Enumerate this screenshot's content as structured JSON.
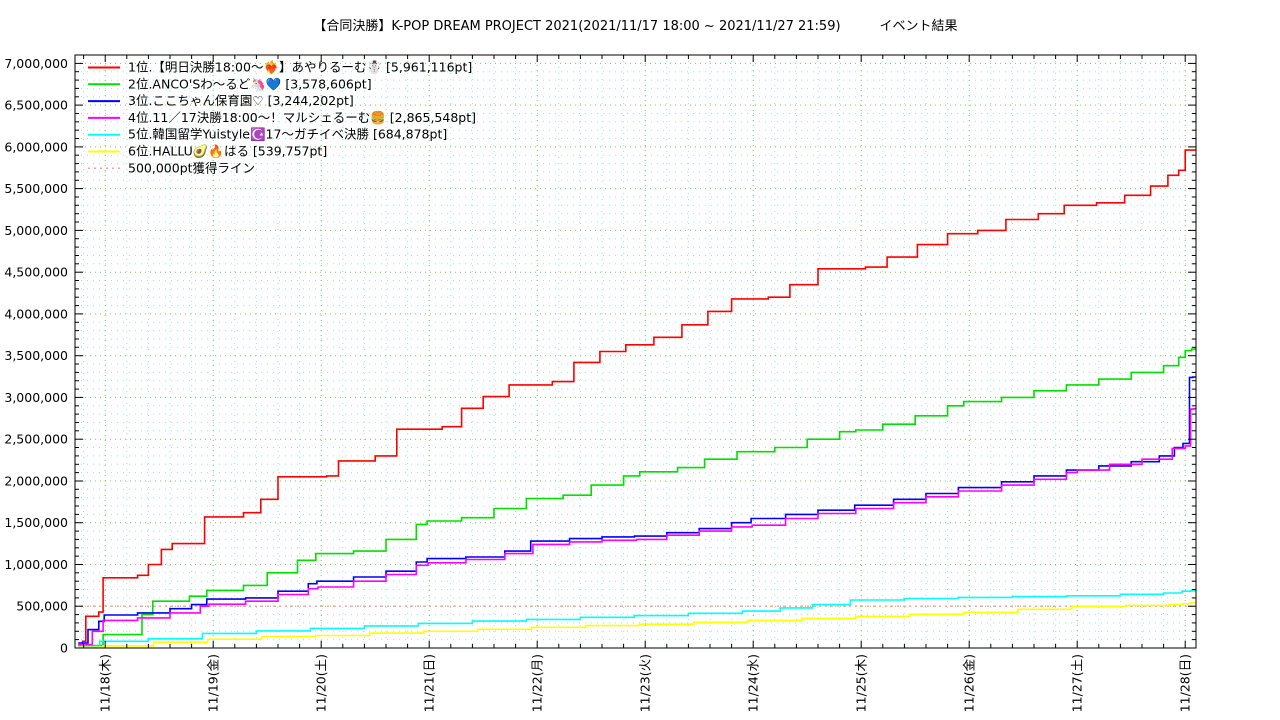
{
  "page": {
    "background": "#ffffff"
  },
  "title": "【合同決勝】K-POP DREAM PROJECT 2021(2021/11/17 18:00 ~ 2021/11/27 21:59)　　　イベント結果",
  "chart_data": {
    "type": "line",
    "step": true,
    "title": "【合同決勝】K-POP DREAM PROJECT 2021(2021/11/17 18:00 ~ 2021/11/27 21:59)　　　イベント結果",
    "legend_position": "top-left-inside",
    "grid": {
      "major_color": "#6ec96e",
      "minor_color": "#9fe3e3",
      "style": "dotted"
    },
    "x_axis": {
      "unit": "date",
      "range_days": [
        17.72,
        28.1
      ],
      "tick_days": [
        18,
        19,
        20,
        21,
        22,
        23,
        24,
        25,
        26,
        27,
        28
      ],
      "tick_labels": [
        "11/18(木)",
        "11/19(金)",
        "11/20(土)",
        "11/21(日)",
        "11/22(月)",
        "11/23(火)",
        "11/24(水)",
        "11/25(木)",
        "11/26(金)",
        "11/27(土)",
        "11/28(日)"
      ],
      "minor_step_days": 0.2
    },
    "y_axis": {
      "unit": "pt",
      "range": [
        0,
        7100000
      ],
      "tick_values": [
        0,
        500000,
        1000000,
        1500000,
        2000000,
        2500000,
        3000000,
        3500000,
        4000000,
        4500000,
        5000000,
        5500000,
        6000000,
        6500000,
        7000000
      ],
      "tick_labels": [
        "0",
        "500,000",
        "1,000,000",
        "1,500,000",
        "2,000,000",
        "2,500,000",
        "3,000,000",
        "3,500,000",
        "4,000,000",
        "4,500,000",
        "5,000,000",
        "5,500,000",
        "6,000,000",
        "6,500,000",
        "7,000,000"
      ],
      "minor_step": 100000
    },
    "threshold_line": {
      "label": "500,000pt獲得ライン",
      "value": 500000,
      "color": "#ff9999",
      "style": "dotted"
    },
    "series": [
      {
        "rank": 1,
        "legend_label": "1位.【明日決勝18:00〜❤️‍🔥】あやりるーむ☃️ [5,961,116pt]",
        "final_pt": 5961116,
        "color": "#ff0000",
        "points": [
          [
            17.75,
            30000
          ],
          [
            17.79,
            80000
          ],
          [
            17.82,
            380000
          ],
          [
            17.94,
            430000
          ],
          [
            17.98,
            840000
          ],
          [
            18.3,
            870000
          ],
          [
            18.4,
            1000000
          ],
          [
            18.52,
            1180000
          ],
          [
            18.62,
            1250000
          ],
          [
            18.92,
            1570000
          ],
          [
            19.28,
            1620000
          ],
          [
            19.44,
            1780000
          ],
          [
            19.6,
            2050000
          ],
          [
            20.05,
            2060000
          ],
          [
            20.16,
            2240000
          ],
          [
            20.5,
            2300000
          ],
          [
            20.7,
            2620000
          ],
          [
            21.12,
            2650000
          ],
          [
            21.3,
            2870000
          ],
          [
            21.5,
            3010000
          ],
          [
            21.74,
            3150000
          ],
          [
            22.14,
            3190000
          ],
          [
            22.34,
            3420000
          ],
          [
            22.58,
            3550000
          ],
          [
            22.82,
            3630000
          ],
          [
            23.08,
            3720000
          ],
          [
            23.34,
            3870000
          ],
          [
            23.58,
            4030000
          ],
          [
            23.8,
            4180000
          ],
          [
            24.14,
            4200000
          ],
          [
            24.34,
            4350000
          ],
          [
            24.6,
            4540000
          ],
          [
            25.04,
            4560000
          ],
          [
            25.24,
            4680000
          ],
          [
            25.52,
            4830000
          ],
          [
            25.8,
            4960000
          ],
          [
            26.08,
            5000000
          ],
          [
            26.34,
            5130000
          ],
          [
            26.64,
            5200000
          ],
          [
            26.88,
            5300000
          ],
          [
            27.18,
            5330000
          ],
          [
            27.44,
            5420000
          ],
          [
            27.68,
            5530000
          ],
          [
            27.84,
            5660000
          ],
          [
            27.94,
            5720000
          ],
          [
            28.0,
            5961116
          ]
        ]
      },
      {
        "rank": 2,
        "legend_label": "2位.ANCO'Sわ〜るど🦄💙 [3,578,606pt]",
        "final_pt": 3578606,
        "color": "#00e000",
        "points": [
          [
            17.75,
            30000
          ],
          [
            17.98,
            160000
          ],
          [
            18.34,
            400000
          ],
          [
            18.44,
            560000
          ],
          [
            18.78,
            620000
          ],
          [
            18.94,
            690000
          ],
          [
            19.28,
            750000
          ],
          [
            19.5,
            900000
          ],
          [
            19.78,
            1050000
          ],
          [
            19.95,
            1130000
          ],
          [
            20.3,
            1160000
          ],
          [
            20.6,
            1300000
          ],
          [
            20.88,
            1480000
          ],
          [
            20.98,
            1520000
          ],
          [
            21.3,
            1560000
          ],
          [
            21.6,
            1670000
          ],
          [
            21.9,
            1790000
          ],
          [
            22.24,
            1830000
          ],
          [
            22.5,
            1950000
          ],
          [
            22.8,
            2060000
          ],
          [
            22.95,
            2110000
          ],
          [
            23.3,
            2160000
          ],
          [
            23.55,
            2260000
          ],
          [
            23.85,
            2350000
          ],
          [
            24.2,
            2400000
          ],
          [
            24.5,
            2500000
          ],
          [
            24.8,
            2590000
          ],
          [
            24.95,
            2610000
          ],
          [
            25.2,
            2680000
          ],
          [
            25.5,
            2780000
          ],
          [
            25.8,
            2900000
          ],
          [
            25.95,
            2950000
          ],
          [
            26.3,
            3000000
          ],
          [
            26.6,
            3080000
          ],
          [
            26.9,
            3150000
          ],
          [
            27.2,
            3220000
          ],
          [
            27.5,
            3300000
          ],
          [
            27.8,
            3380000
          ],
          [
            27.94,
            3480000
          ],
          [
            28.0,
            3560000
          ],
          [
            28.06,
            3578606
          ]
        ]
      },
      {
        "rank": 3,
        "legend_label": "3位.ここちゃん保育園♡ [3,244,202pt]",
        "final_pt": 3244202,
        "color": "#0000ff",
        "points": [
          [
            17.75,
            60000
          ],
          [
            17.84,
            220000
          ],
          [
            17.94,
            320000
          ],
          [
            17.99,
            395000
          ],
          [
            18.3,
            420000
          ],
          [
            18.6,
            470000
          ],
          [
            18.8,
            520000
          ],
          [
            18.94,
            585000
          ],
          [
            19.3,
            600000
          ],
          [
            19.6,
            680000
          ],
          [
            19.88,
            770000
          ],
          [
            19.96,
            800000
          ],
          [
            20.3,
            850000
          ],
          [
            20.6,
            920000
          ],
          [
            20.88,
            1030000
          ],
          [
            20.98,
            1070000
          ],
          [
            21.34,
            1090000
          ],
          [
            21.7,
            1160000
          ],
          [
            21.94,
            1280000
          ],
          [
            22.3,
            1310000
          ],
          [
            22.6,
            1330000
          ],
          [
            22.9,
            1340000
          ],
          [
            23.2,
            1380000
          ],
          [
            23.5,
            1430000
          ],
          [
            23.8,
            1500000
          ],
          [
            23.98,
            1550000
          ],
          [
            24.3,
            1600000
          ],
          [
            24.6,
            1650000
          ],
          [
            24.94,
            1710000
          ],
          [
            25.3,
            1780000
          ],
          [
            25.6,
            1850000
          ],
          [
            25.9,
            1920000
          ],
          [
            26.3,
            1990000
          ],
          [
            26.6,
            2060000
          ],
          [
            26.9,
            2130000
          ],
          [
            27.2,
            2180000
          ],
          [
            27.5,
            2230000
          ],
          [
            27.76,
            2300000
          ],
          [
            27.9,
            2400000
          ],
          [
            27.98,
            2450000
          ],
          [
            28.04,
            3240000
          ],
          [
            28.07,
            3244202
          ]
        ]
      },
      {
        "rank": 4,
        "legend_label": "4位.11／17決勝18:00〜！マルシェるーむ🍔 [2,865,548pt]",
        "final_pt": 2865548,
        "color": "#ff00ff",
        "points": [
          [
            17.75,
            40000
          ],
          [
            17.88,
            200000
          ],
          [
            17.98,
            330000
          ],
          [
            18.3,
            360000
          ],
          [
            18.6,
            420000
          ],
          [
            18.88,
            500000
          ],
          [
            18.96,
            525000
          ],
          [
            19.3,
            560000
          ],
          [
            19.6,
            640000
          ],
          [
            19.88,
            710000
          ],
          [
            19.97,
            730000
          ],
          [
            20.3,
            800000
          ],
          [
            20.6,
            880000
          ],
          [
            20.88,
            990000
          ],
          [
            20.99,
            1020000
          ],
          [
            21.34,
            1060000
          ],
          [
            21.7,
            1130000
          ],
          [
            21.96,
            1240000
          ],
          [
            22.3,
            1270000
          ],
          [
            22.6,
            1290000
          ],
          [
            22.92,
            1300000
          ],
          [
            23.2,
            1350000
          ],
          [
            23.5,
            1400000
          ],
          [
            23.8,
            1450000
          ],
          [
            23.99,
            1470000
          ],
          [
            24.3,
            1550000
          ],
          [
            24.6,
            1610000
          ],
          [
            24.95,
            1670000
          ],
          [
            25.3,
            1740000
          ],
          [
            25.6,
            1810000
          ],
          [
            25.9,
            1880000
          ],
          [
            26.3,
            1950000
          ],
          [
            26.6,
            2020000
          ],
          [
            26.9,
            2100000
          ],
          [
            27.0,
            2130000
          ],
          [
            27.3,
            2200000
          ],
          [
            27.6,
            2260000
          ],
          [
            27.88,
            2390000
          ],
          [
            28.0,
            2420000
          ],
          [
            28.05,
            2860000
          ],
          [
            28.08,
            2865548
          ]
        ]
      },
      {
        "rank": 5,
        "legend_label": "5位.韓国留学Yuistyle☪️17〜ガチイベ決勝 [684,878pt]",
        "final_pt": 684878,
        "color": "#00ffff",
        "points": [
          [
            17.75,
            20000
          ],
          [
            17.95,
            80000
          ],
          [
            18.4,
            110000
          ],
          [
            18.9,
            175000
          ],
          [
            19.4,
            205000
          ],
          [
            19.9,
            235000
          ],
          [
            20.4,
            265000
          ],
          [
            20.9,
            295000
          ],
          [
            21.4,
            322000
          ],
          [
            21.9,
            342000
          ],
          [
            22.4,
            368000
          ],
          [
            22.9,
            388000
          ],
          [
            23.4,
            415000
          ],
          [
            23.9,
            442000
          ],
          [
            24.25,
            480000
          ],
          [
            24.55,
            520000
          ],
          [
            24.9,
            575000
          ],
          [
            25.4,
            593000
          ],
          [
            25.9,
            606000
          ],
          [
            26.4,
            616000
          ],
          [
            26.9,
            625000
          ],
          [
            27.4,
            643000
          ],
          [
            27.8,
            658000
          ],
          [
            27.97,
            680000
          ],
          [
            28.05,
            684878
          ]
        ]
      },
      {
        "rank": 6,
        "legend_label": "6位.HALLU🥑🔥はる [539,757pt]",
        "final_pt": 539757,
        "color": "#ffff00",
        "points": [
          [
            17.75,
            10000
          ],
          [
            17.98,
            25000
          ],
          [
            18.45,
            70000
          ],
          [
            18.95,
            105000
          ],
          [
            19.45,
            138000
          ],
          [
            19.95,
            150000
          ],
          [
            20.45,
            178000
          ],
          [
            20.95,
            200000
          ],
          [
            21.45,
            224000
          ],
          [
            21.95,
            248000
          ],
          [
            22.45,
            268000
          ],
          [
            22.95,
            285000
          ],
          [
            23.45,
            308000
          ],
          [
            23.95,
            330000
          ],
          [
            24.45,
            355000
          ],
          [
            24.95,
            378000
          ],
          [
            25.45,
            404000
          ],
          [
            25.95,
            426000
          ],
          [
            26.45,
            463000
          ],
          [
            26.95,
            498000
          ],
          [
            27.45,
            510000
          ],
          [
            27.85,
            520000
          ],
          [
            27.98,
            530000
          ],
          [
            28.05,
            539757
          ]
        ]
      }
    ]
  }
}
